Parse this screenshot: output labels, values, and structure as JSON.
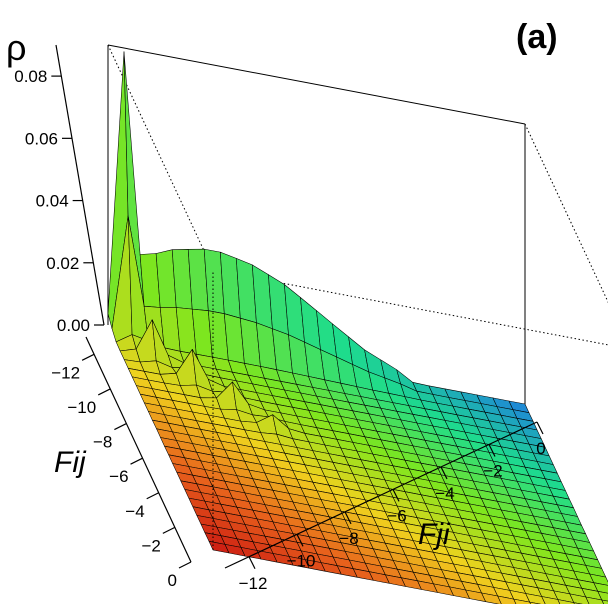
{
  "chart_data": {
    "type": "surface3d",
    "panel_label": "(a)",
    "zlabel": "ρ",
    "xlabel": "Fji",
    "ylabel": "Fij",
    "zlim": [
      0,
      0.09
    ],
    "z_ticks": [
      "0.00",
      "0.02",
      "0.04",
      "0.06",
      "0.08"
    ],
    "fij_ticks": [
      "−12",
      "−10",
      "−8",
      "−6",
      "−4",
      "−2",
      "0"
    ],
    "fji_ticks": [
      "−12",
      "−10",
      "−8",
      "−6",
      "−4",
      "−2",
      "0"
    ],
    "fij_range": [
      -13,
      0
    ],
    "fji_range": [
      -13,
      0
    ],
    "colormap": [
      "#cc1a12",
      "#e8641c",
      "#f0d21e",
      "#7ee61e",
      "#1edc8c",
      "#1e82dc"
    ],
    "peaks_along_fij_edge": [
      {
        "fji": -12.5,
        "rho": 0.088
      },
      {
        "fji": -12.0,
        "rho": 0.02
      },
      {
        "fji": -11.5,
        "rho": 0.024
      },
      {
        "fji": -11.0,
        "rho": 0.026
      },
      {
        "fji": -10.5,
        "rho": 0.027
      },
      {
        "fji": -10.0,
        "rho": 0.028
      },
      {
        "fji": -9.5,
        "rho": 0.028
      },
      {
        "fji": -9.0,
        "rho": 0.027
      },
      {
        "fji": -8.5,
        "rho": 0.026
      },
      {
        "fji": -8.0,
        "rho": 0.024
      },
      {
        "fji": -7.5,
        "rho": 0.022
      },
      {
        "fji": -7.0,
        "rho": 0.019
      },
      {
        "fji": -6.5,
        "rho": 0.016
      },
      {
        "fji": -6.0,
        "rho": 0.013
      },
      {
        "fji": -5.5,
        "rho": 0.01
      },
      {
        "fji": -5.0,
        "rho": 0.007
      },
      {
        "fji": -4.5,
        "rho": 0.005
      },
      {
        "fji": -4.0,
        "rho": 0.003
      }
    ],
    "peaks_along_diagonal": [
      {
        "f": -12.0,
        "rho": 0.012
      },
      {
        "f": -11.0,
        "rho": 0.01
      },
      {
        "f": -10.0,
        "rho": 0.007
      },
      {
        "f": -9.0,
        "rho": 0.004
      }
    ]
  }
}
